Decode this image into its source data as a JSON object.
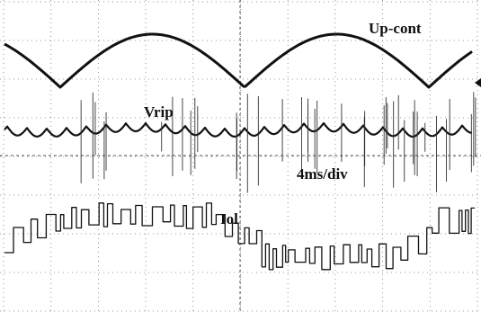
{
  "labels": {
    "trace_1": "Up-cont",
    "trace_2": "Vrip",
    "timebase": "4ms/div",
    "trace_3": "Iol"
  }
}
